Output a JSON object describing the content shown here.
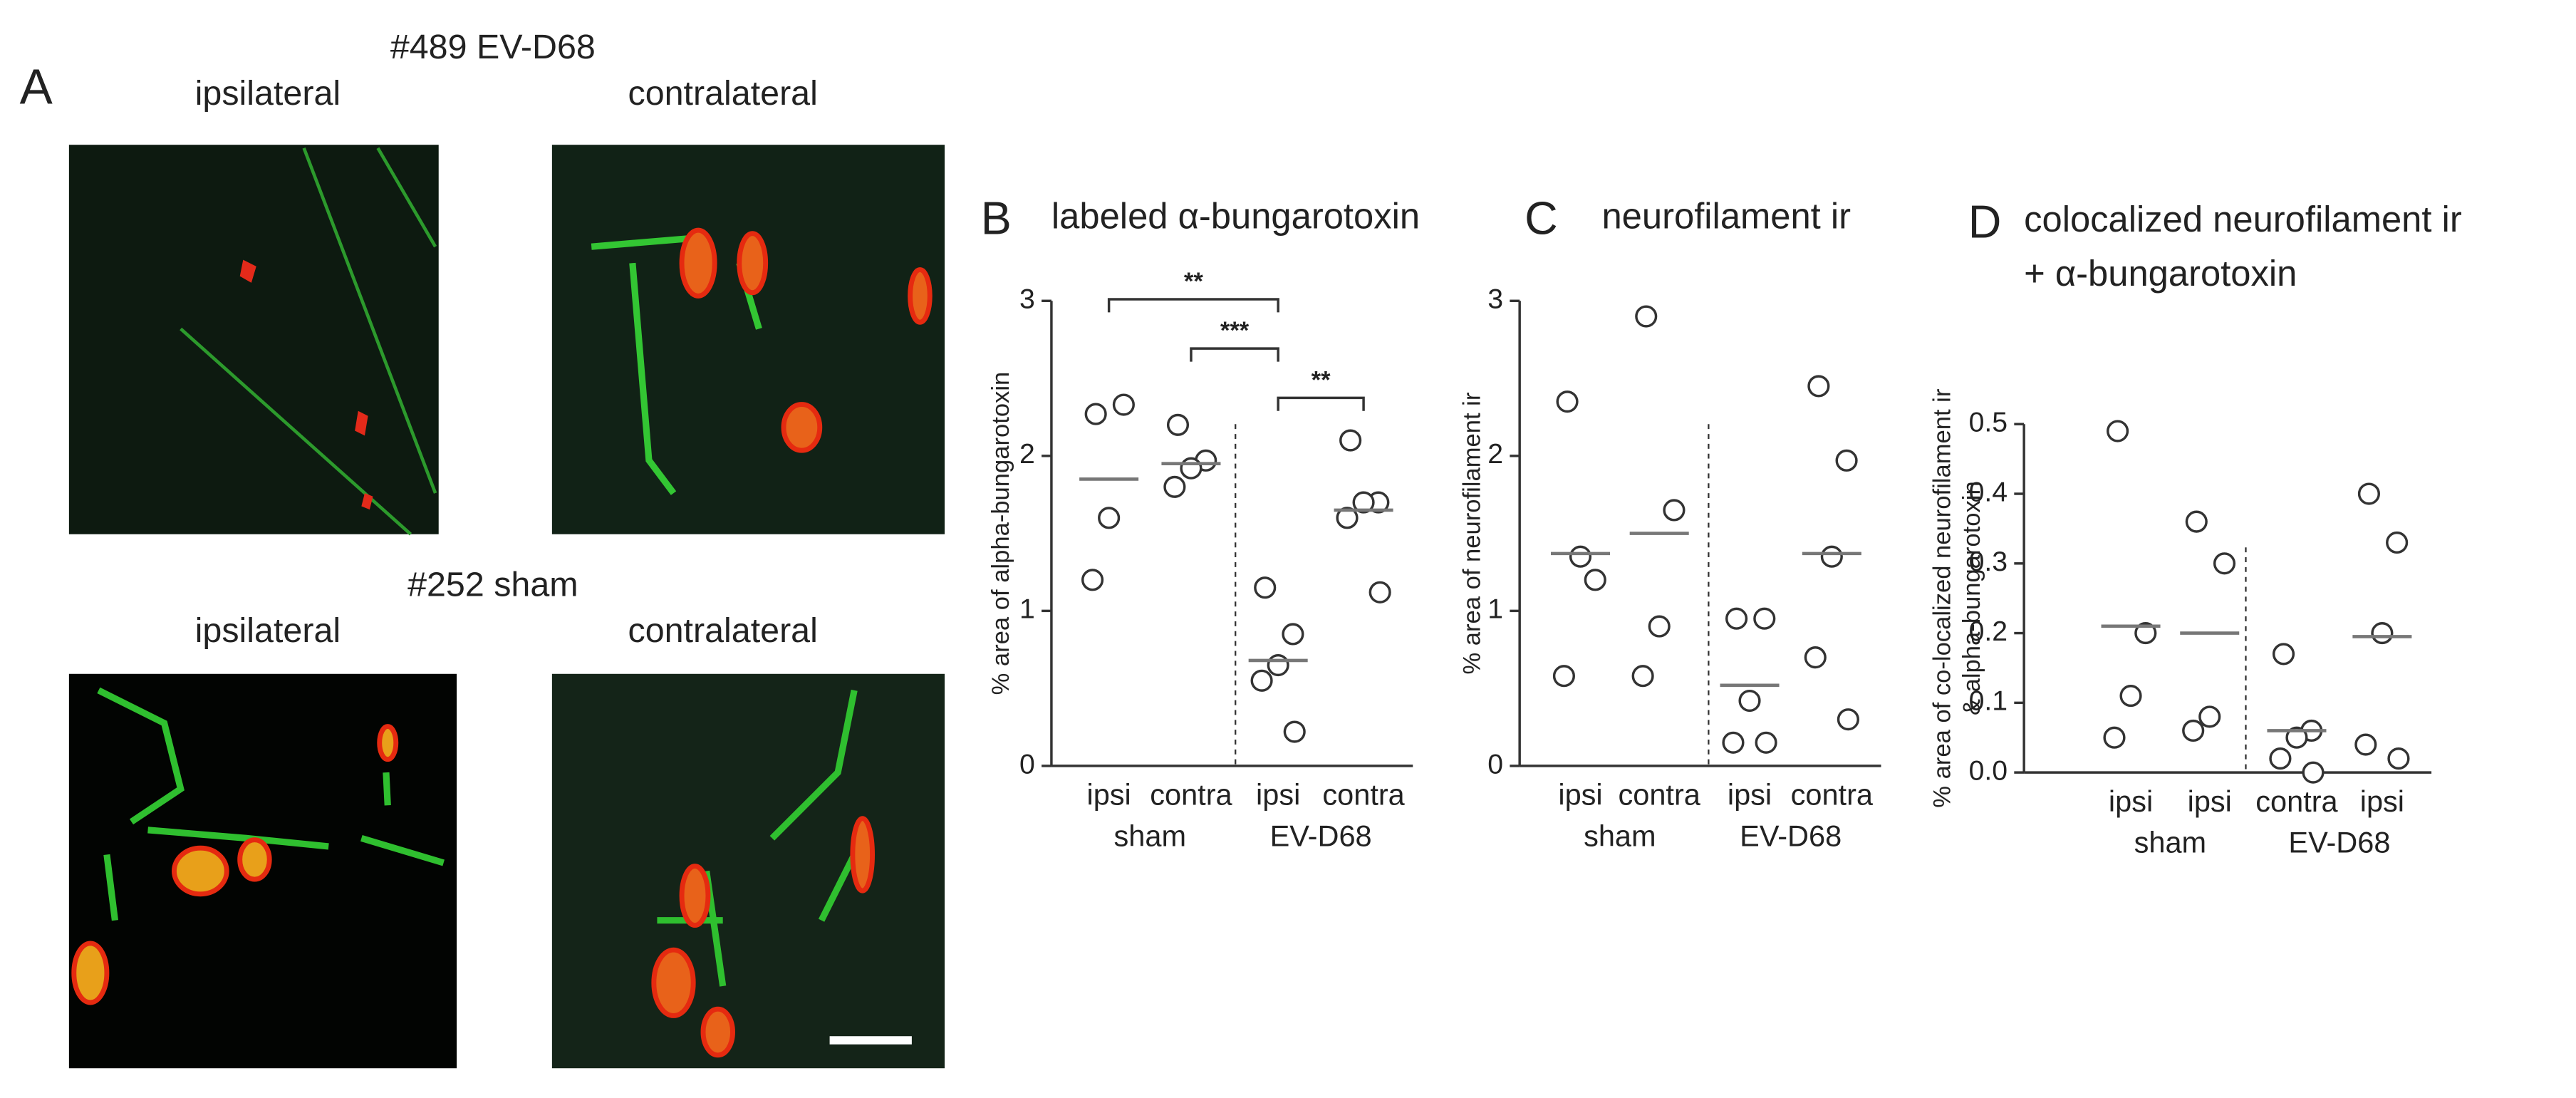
{
  "panel_a": {
    "label": "A",
    "groups": [
      {
        "title": "#489 EV-D68",
        "images": [
          "ipsilateral",
          "contralateral"
        ]
      },
      {
        "title": "#252 sham",
        "images": [
          "ipsilateral",
          "contralateral"
        ]
      }
    ]
  },
  "chart_data": [
    {
      "type": "scatter",
      "panel": "B",
      "title": [
        "labeled α-bungarotoxin"
      ],
      "ylabel": [
        "% area of alpha-bungarotoxin"
      ],
      "categories": [
        "ipsi",
        "contra",
        "ipsi",
        "contra"
      ],
      "groups": [
        "sham",
        "EV-D68"
      ],
      "values": [
        [
          2.27,
          2.33,
          1.6,
          1.2
        ],
        [
          2.2,
          1.97,
          1.92,
          1.8
        ],
        [
          1.15,
          0.85,
          0.65,
          0.55,
          0.22
        ],
        [
          2.1,
          1.7,
          1.7,
          1.6,
          1.12
        ]
      ],
      "means": [
        1.85,
        1.95,
        0.68,
        1.65
      ],
      "ylim": [
        0,
        3
      ],
      "yticks": [
        0,
        1,
        2,
        3
      ],
      "annotations": [
        {
          "text": "**",
          "from": 0,
          "to": 2
        },
        {
          "text": "***",
          "from": 1,
          "to": 2
        },
        {
          "text": "**",
          "from": 2,
          "to": 3
        }
      ]
    },
    {
      "type": "scatter",
      "panel": "C",
      "title": [
        "neurofilament ir"
      ],
      "ylabel": [
        "% area of neurofilament ir"
      ],
      "categories": [
        "ipsi",
        "contra",
        "ipsi",
        "contra"
      ],
      "groups": [
        "sham",
        "EV-D68"
      ],
      "values": [
        [
          2.35,
          1.2,
          1.35,
          0.58
        ],
        [
          2.9,
          1.65,
          0.9,
          0.58
        ],
        [
          0.95,
          0.95,
          0.42,
          0.15,
          0.15
        ],
        [
          2.45,
          1.97,
          1.35,
          0.7,
          0.3
        ]
      ],
      "means": [
        1.37,
        1.5,
        0.52,
        1.37
      ],
      "ylim": [
        0,
        3
      ],
      "yticks": [
        0,
        1,
        2,
        3
      ]
    },
    {
      "type": "scatter",
      "panel": "D",
      "title": [
        "colocalized neurofilament ir",
        "+ α-bungarotoxin"
      ],
      "ylabel": [
        "% area of co-localized neurofilament ir",
        "& alpha-bungarotoxin"
      ],
      "categories": [
        "ipsi",
        "ipsi",
        "contra",
        "ipsi"
      ],
      "groups": [
        "sham",
        "EV-D68"
      ],
      "values": [
        [
          0.49,
          0.2,
          0.11,
          0.05
        ],
        [
          0.36,
          0.3,
          0.08,
          0.06
        ],
        [
          0.17,
          0.06,
          0.05,
          0.02,
          0.0
        ],
        [
          0.4,
          0.33,
          0.2,
          0.04,
          0.02
        ]
      ],
      "means": [
        0.21,
        0.2,
        0.06,
        0.195
      ],
      "ylim": [
        0,
        0.5
      ],
      "yticks": [
        {
          "value": 0,
          "label": "0.0"
        },
        0.1,
        0.2,
        0.3,
        0.4,
        0.5
      ]
    }
  ]
}
